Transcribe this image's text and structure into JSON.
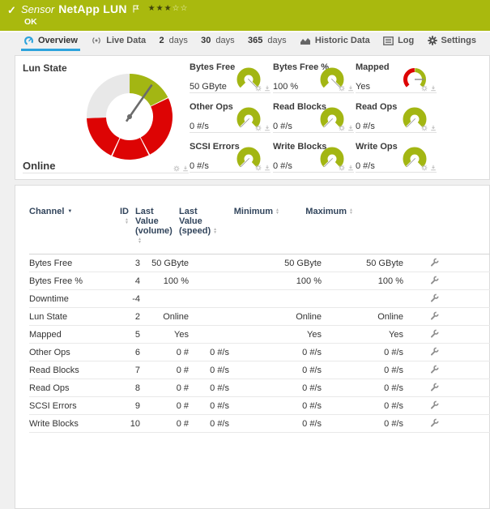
{
  "colors": {
    "header_green": "#a9b90e",
    "tab_blue": "#2da3dc",
    "gauge_green": "#a3b613",
    "gauge_red": "#dd0404",
    "gauge_gray": "#e8e8e8",
    "navy": "#32455c"
  },
  "header": {
    "kind_label": "Sensor",
    "sensor_name": "NetApp LUN",
    "status": "OK",
    "stars_filled": 3,
    "stars_total": 5
  },
  "tabs": [
    {
      "label": "Overview",
      "icon": "gauge-icon",
      "active": true
    },
    {
      "label": "Live Data",
      "icon": "live-icon"
    },
    {
      "num": "2",
      "label": "days"
    },
    {
      "num": "30",
      "label": "days"
    },
    {
      "num": "365",
      "label": "days"
    },
    {
      "label": "Historic Data",
      "icon": "chart-icon"
    },
    {
      "label": "Log",
      "icon": "log-icon"
    },
    {
      "label": "Settings",
      "icon": "gear-icon"
    }
  ],
  "overview": {
    "primary_gauge": {
      "label": "Lun State",
      "value": "Online",
      "needle_deg": 35,
      "segments": [
        {
          "from": 0,
          "to": 63,
          "color": "gauge_green"
        },
        {
          "from": 64.5,
          "to": 151.5,
          "color": "gauge_red"
        },
        {
          "from": 153.5,
          "to": 203.5,
          "color": "gauge_red"
        },
        {
          "from": 205.5,
          "to": 268,
          "color": "gauge_red"
        },
        {
          "from": 268,
          "to": 360,
          "color": "gauge_gray"
        }
      ]
    },
    "gauges": [
      {
        "label": "Bytes Free",
        "value": "50 GByte",
        "type": "green",
        "needle_deg": 135
      },
      {
        "label": "Bytes Free %",
        "value": "100 %",
        "type": "green",
        "needle_deg": 135
      },
      {
        "label": "Mapped",
        "value": "Yes",
        "type": "redgreen",
        "needle_deg": 90
      },
      {
        "label": "Other Ops",
        "value": "0 #/s",
        "type": "green",
        "needle_deg": 225
      },
      {
        "label": "Read Blocks",
        "value": "0 #/s",
        "type": "green",
        "needle_deg": 225
      },
      {
        "label": "Read Ops",
        "value": "0 #/s",
        "type": "green",
        "needle_deg": 225
      },
      {
        "label": "SCSI Errors",
        "value": "0 #/s",
        "type": "green",
        "needle_deg": 225
      },
      {
        "label": "Write Blocks",
        "value": "0 #/s",
        "type": "green",
        "needle_deg": 225
      },
      {
        "label": "Write Ops",
        "value": "0 #/s",
        "type": "green",
        "needle_deg": 225
      }
    ]
  },
  "table": {
    "columns": [
      "Channel",
      "ID",
      "Last Value (volume)",
      "Last Value (speed)",
      "Minimum",
      "Maximum"
    ],
    "rows": [
      {
        "name": "Bytes Free",
        "id": "3",
        "volume": "50 GByte",
        "speed": "",
        "min": "50 GByte",
        "max": "50 GByte"
      },
      {
        "name": "Bytes Free %",
        "id": "4",
        "volume": "100 %",
        "speed": "",
        "min": "100 %",
        "max": "100 %"
      },
      {
        "name": "Downtime",
        "id": "-4",
        "volume": "",
        "speed": "",
        "min": "",
        "max": ""
      },
      {
        "name": "Lun State",
        "id": "2",
        "volume": "Online",
        "speed": "",
        "min": "Online",
        "max": "Online"
      },
      {
        "name": "Mapped",
        "id": "5",
        "volume": "Yes",
        "speed": "",
        "min": "Yes",
        "max": "Yes"
      },
      {
        "name": "Other Ops",
        "id": "6",
        "volume": "0 #",
        "speed": "0 #/s",
        "min": "0 #/s",
        "max": "0 #/s"
      },
      {
        "name": "Read Blocks",
        "id": "7",
        "volume": "0 #",
        "speed": "0 #/s",
        "min": "0 #/s",
        "max": "0 #/s"
      },
      {
        "name": "Read Ops",
        "id": "8",
        "volume": "0 #",
        "speed": "0 #/s",
        "min": "0 #/s",
        "max": "0 #/s"
      },
      {
        "name": "SCSI Errors",
        "id": "9",
        "volume": "0 #",
        "speed": "0 #/s",
        "min": "0 #/s",
        "max": "0 #/s"
      },
      {
        "name": "Write Blocks",
        "id": "10",
        "volume": "0 #",
        "speed": "0 #/s",
        "min": "0 #/s",
        "max": "0 #/s"
      }
    ]
  }
}
